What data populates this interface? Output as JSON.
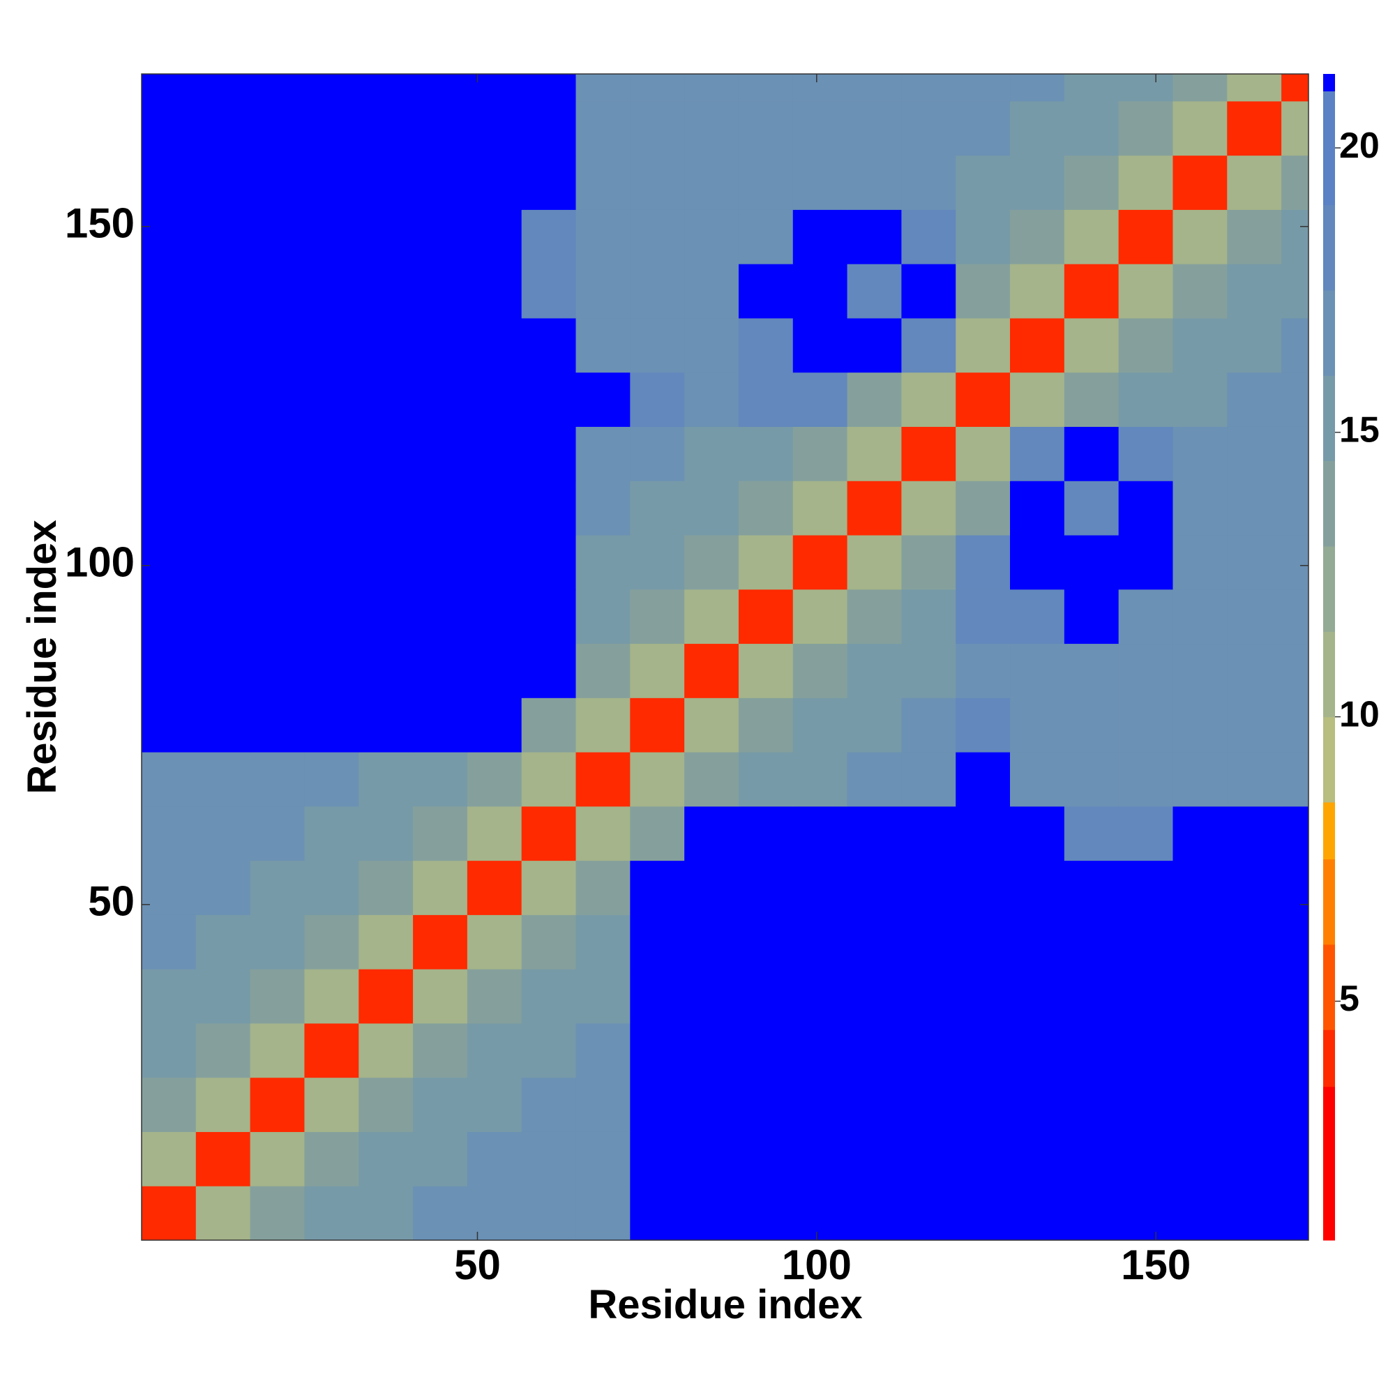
{
  "chart_data": {
    "type": "heatmap",
    "x_label": "Residue index",
    "y_label": "Residue index",
    "bins": [
      0.5,
      8.5,
      16.5,
      24.5,
      32.5,
      40.5,
      48.5,
      56.5,
      64.5,
      72.5,
      80.5,
      88.5,
      96.5,
      104.5,
      112.5,
      120.5,
      128.5,
      136.5,
      144.5,
      152.5,
      160.5,
      168.5,
      172.5
    ],
    "xlim": [
      0.5,
      172.5
    ],
    "ylim": [
      0.5,
      172.5
    ],
    "xticks": [
      50,
      100,
      150
    ],
    "yticks": [
      50,
      100,
      150
    ],
    "z": [
      [
        4,
        10,
        14,
        15,
        15,
        16,
        16,
        17,
        17,
        21,
        21,
        21,
        21,
        21,
        21,
        21,
        21,
        21,
        21,
        21,
        21,
        21
      ],
      [
        10,
        4,
        10,
        14,
        15,
        15,
        16,
        16,
        17,
        21,
        21,
        21,
        21,
        21,
        21,
        21,
        21,
        21,
        21,
        21,
        21,
        21
      ],
      [
        14,
        10,
        4,
        10,
        14,
        15,
        15,
        16,
        16,
        21,
        21,
        21,
        21,
        21,
        21,
        21,
        21,
        21,
        21,
        21,
        21,
        21
      ],
      [
        15,
        14,
        10,
        4,
        10,
        14,
        15,
        15,
        16,
        21,
        21,
        21,
        21,
        21,
        21,
        21,
        21,
        21,
        21,
        21,
        21,
        21
      ],
      [
        15,
        15,
        14,
        10,
        4,
        10,
        14,
        15,
        15,
        21,
        21,
        21,
        21,
        21,
        21,
        21,
        21,
        21,
        21,
        21,
        21,
        21
      ],
      [
        16,
        15,
        15,
        14,
        10,
        4,
        10,
        14,
        15,
        21,
        21,
        21,
        21,
        21,
        21,
        21,
        21,
        21,
        21,
        21,
        21,
        21
      ],
      [
        16,
        16,
        15,
        15,
        14,
        10,
        4,
        10,
        14,
        21,
        21,
        21,
        21,
        21,
        21,
        21,
        21,
        21,
        21,
        21,
        21,
        21
      ],
      [
        17,
        16,
        16,
        15,
        15,
        14,
        10,
        4,
        10,
        14,
        21,
        21,
        21,
        21,
        21,
        21,
        21,
        18,
        18,
        21,
        21,
        21
      ],
      [
        17,
        17,
        16,
        16,
        15,
        15,
        14,
        10,
        4,
        10,
        14,
        15,
        15,
        17,
        17,
        21,
        17,
        17,
        17,
        17,
        17,
        17
      ],
      [
        21,
        21,
        21,
        21,
        21,
        21,
        21,
        14,
        10,
        4,
        10,
        14,
        15,
        15,
        17,
        18,
        17,
        17,
        17,
        17,
        17,
        17
      ],
      [
        21,
        21,
        21,
        21,
        21,
        21,
        21,
        21,
        14,
        10,
        4,
        10,
        14,
        15,
        15,
        17,
        17,
        17,
        17,
        17,
        17,
        17
      ],
      [
        21,
        21,
        21,
        21,
        21,
        21,
        21,
        21,
        15,
        14,
        10,
        4,
        10,
        14,
        15,
        18,
        18,
        21,
        17,
        17,
        17,
        17
      ],
      [
        21,
        21,
        21,
        21,
        21,
        21,
        21,
        21,
        15,
        15,
        14,
        10,
        4,
        10,
        14,
        18,
        21,
        21,
        21,
        17,
        17,
        17
      ],
      [
        21,
        21,
        21,
        21,
        21,
        21,
        21,
        21,
        17,
        15,
        15,
        14,
        10,
        4,
        10,
        14,
        21,
        18,
        21,
        17,
        17,
        17
      ],
      [
        21,
        21,
        21,
        21,
        21,
        21,
        21,
        21,
        17,
        17,
        15,
        15,
        14,
        10,
        4,
        10,
        18,
        21,
        18,
        16,
        16,
        16
      ],
      [
        21,
        21,
        21,
        21,
        21,
        21,
        21,
        21,
        21,
        18,
        17,
        18,
        18,
        14,
        10,
        4,
        10,
        14,
        15,
        15,
        16,
        16
      ],
      [
        21,
        21,
        21,
        21,
        21,
        21,
        21,
        21,
        17,
        17,
        17,
        18,
        21,
        21,
        18,
        10,
        4,
        10,
        14,
        15,
        15,
        16
      ],
      [
        21,
        21,
        21,
        21,
        21,
        21,
        21,
        18,
        17,
        17,
        17,
        21,
        21,
        18,
        21,
        14,
        10,
        4,
        10,
        14,
        15,
        15
      ],
      [
        21,
        21,
        21,
        21,
        21,
        21,
        21,
        18,
        17,
        17,
        17,
        17,
        21,
        21,
        18,
        15,
        14,
        10,
        4,
        10,
        14,
        15
      ],
      [
        21,
        21,
        21,
        21,
        21,
        21,
        21,
        21,
        17,
        17,
        17,
        17,
        17,
        17,
        16,
        15,
        15,
        14,
        10,
        4,
        10,
        14
      ],
      [
        21,
        21,
        21,
        21,
        21,
        21,
        21,
        21,
        17,
        17,
        17,
        17,
        17,
        17,
        16,
        16,
        15,
        15,
        14,
        10,
        4,
        10
      ],
      [
        21,
        21,
        21,
        21,
        21,
        21,
        21,
        21,
        17,
        17,
        17,
        17,
        17,
        17,
        16,
        16,
        16,
        15,
        15,
        14,
        10,
        4
      ]
    ],
    "color_levels": [
      0.8,
      3.5,
      4.5,
      6,
      7.5,
      8.5,
      10,
      11.5,
      13,
      14.5,
      16,
      17.5,
      19,
      21,
      21.3
    ],
    "colors": [
      "#ff0000",
      "#ff2a00",
      "#ff5500",
      "#ff8000",
      "#ffa500",
      "#b8bd80",
      "#a5b48a",
      "#93aa94",
      "#85a09c",
      "#779aa8",
      "#6b91b4",
      "#6288bd",
      "#5a82c4",
      "#0000ff"
    ],
    "colorbar_ticks": [
      5,
      10,
      15,
      20
    ]
  }
}
